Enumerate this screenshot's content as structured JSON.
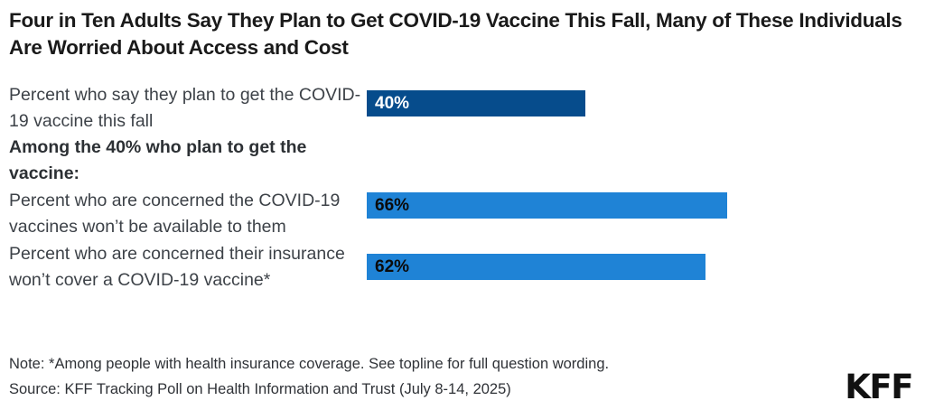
{
  "header": {
    "title": "Four in Ten Adults Say They Plan to Get COVID-19 Vaccine This Fall, Many of These Individuals Are Worried About Access and Cost"
  },
  "chart_data": {
    "type": "bar",
    "orientation": "horizontal",
    "unit": "percent",
    "xlim": [
      0,
      100
    ],
    "grid": false,
    "legend": false,
    "section_header": "Among the 40% who plan to get the vaccine:",
    "rows": [
      {
        "label": "Percent who say they plan to get the COVID-19 vaccine this fall",
        "value": 40,
        "value_label": "40%",
        "color": "#064C8C",
        "text_color": "#FFFFFF"
      },
      {
        "label": "Percent who are concerned the COVID-19 vaccines won’t be available to them",
        "value": 66,
        "value_label": "66%",
        "color": "#1F83D6",
        "text_color": "#0B0B0B"
      },
      {
        "label": "Percent who are concerned their insurance won’t cover a COVID-19 vaccine*",
        "value": 62,
        "value_label": "62%",
        "color": "#1F83D6",
        "text_color": "#0B0B0B"
      }
    ]
  },
  "footer": {
    "note": "Note: *Among people with health insurance coverage. See topline for full question wording.",
    "source": "Source: KFF Tracking Poll on Health Information and Trust (July 8-14, 2025)",
    "logo_text": "KFF"
  },
  "colors": {
    "dark_blue": "#064C8C",
    "light_blue": "#1F83D6",
    "title_text": "#1A1A1A",
    "label_text": "#3D4248",
    "background": "#FFFFFF"
  }
}
